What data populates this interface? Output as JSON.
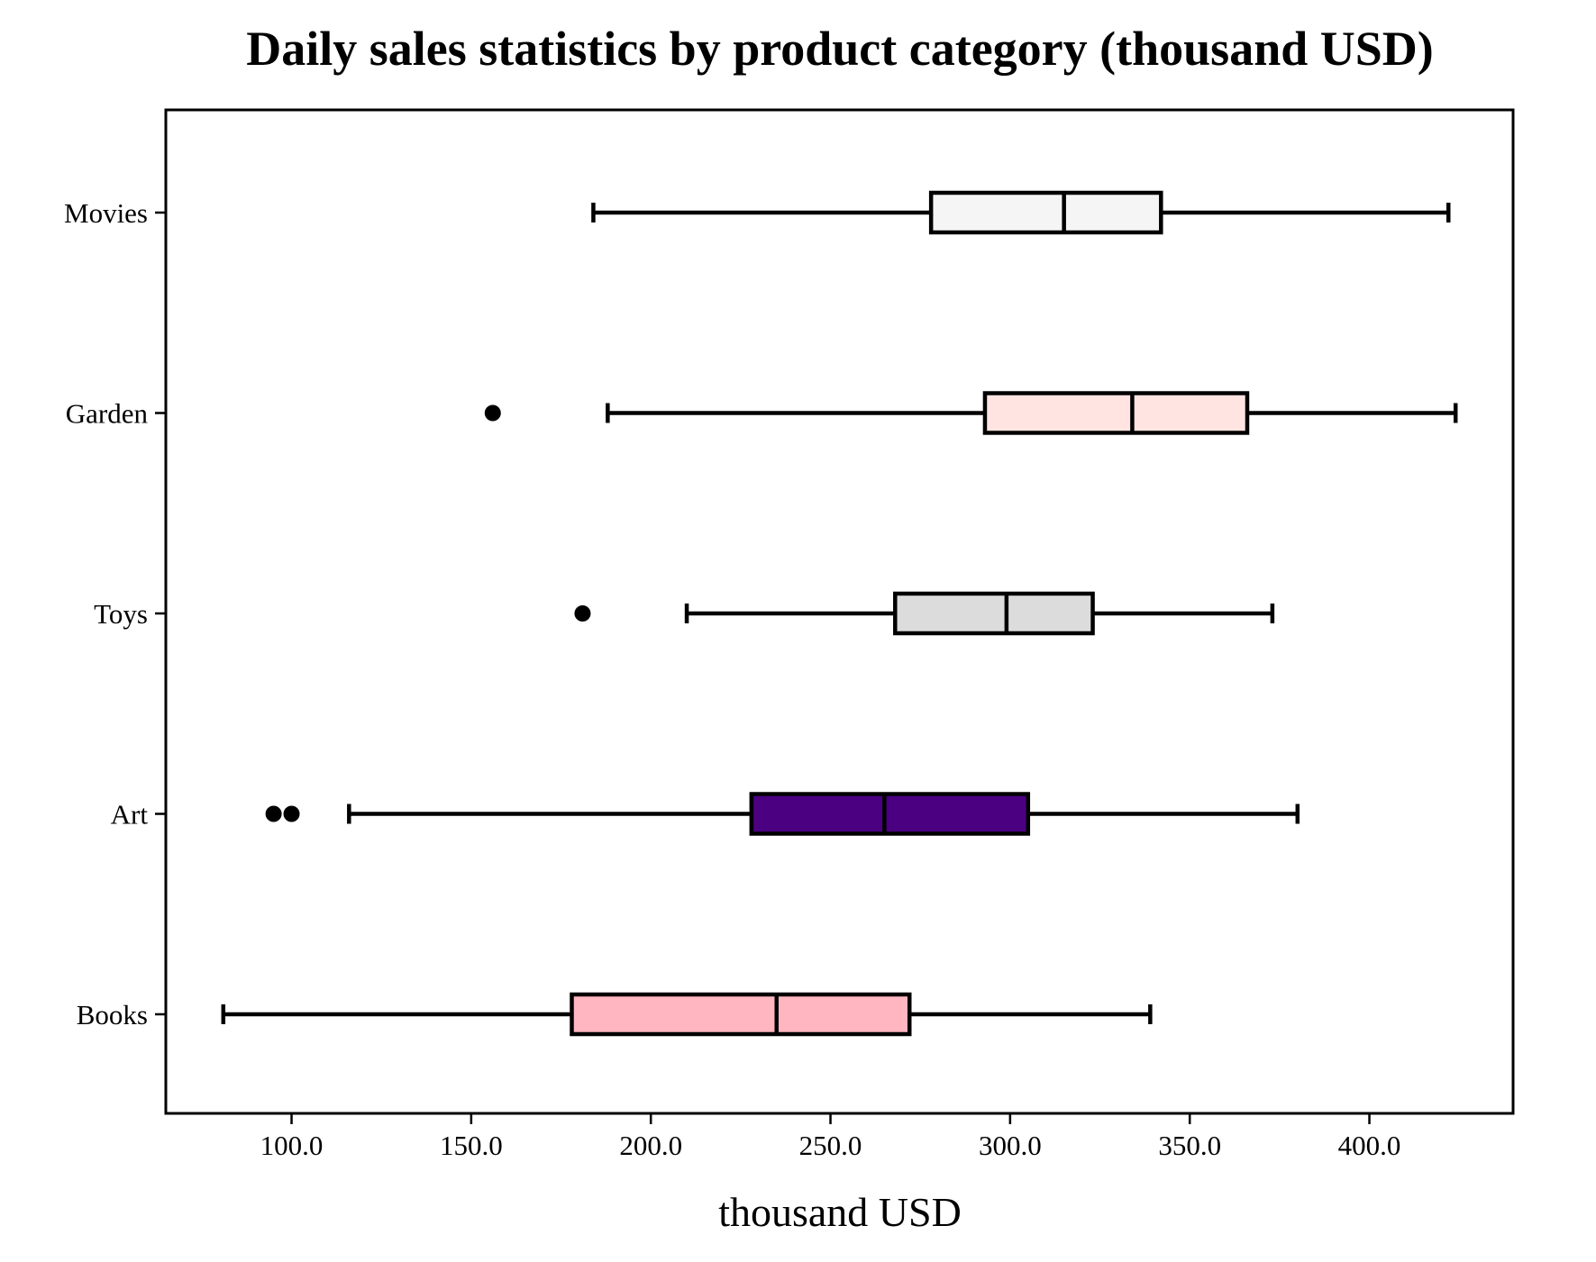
{
  "chart_data": {
    "type": "boxplot",
    "orientation": "horizontal",
    "title": "Daily sales statistics by product category (thousand USD)",
    "xlabel": "thousand USD",
    "ylabel": "",
    "xlim": [
      65,
      440
    ],
    "xticks": [
      100,
      150,
      200,
      250,
      300,
      350,
      400
    ],
    "xtick_labels": [
      "100.0",
      "150.0",
      "200.0",
      "250.0",
      "300.0",
      "350.0",
      "400.0"
    ],
    "grid": false,
    "categories": [
      "Books",
      "Art",
      "Toys",
      "Garden",
      "Movies"
    ],
    "series": [
      {
        "name": "Books",
        "whisker_low": 81,
        "q1": 178,
        "median": 235,
        "q3": 272,
        "whisker_high": 339,
        "outliers": [],
        "color": "#FFB6C1"
      },
      {
        "name": "Art",
        "whisker_low": 116,
        "q1": 228,
        "median": 265,
        "q3": 305,
        "whisker_high": 380,
        "outliers": [
          95,
          100
        ],
        "color": "#4B0082"
      },
      {
        "name": "Toys",
        "whisker_low": 210,
        "q1": 268,
        "median": 299,
        "q3": 323,
        "whisker_high": 373,
        "outliers": [
          181
        ],
        "color": "#DCDCDC"
      },
      {
        "name": "Garden",
        "whisker_low": 188,
        "q1": 293,
        "median": 334,
        "q3": 366,
        "whisker_high": 424,
        "outliers": [
          156
        ],
        "color": "#FFE4E1"
      },
      {
        "name": "Movies",
        "whisker_low": 184,
        "q1": 278,
        "median": 315,
        "q3": 342,
        "whisker_high": 422,
        "outliers": [],
        "color": "#F5F5F5"
      }
    ]
  }
}
